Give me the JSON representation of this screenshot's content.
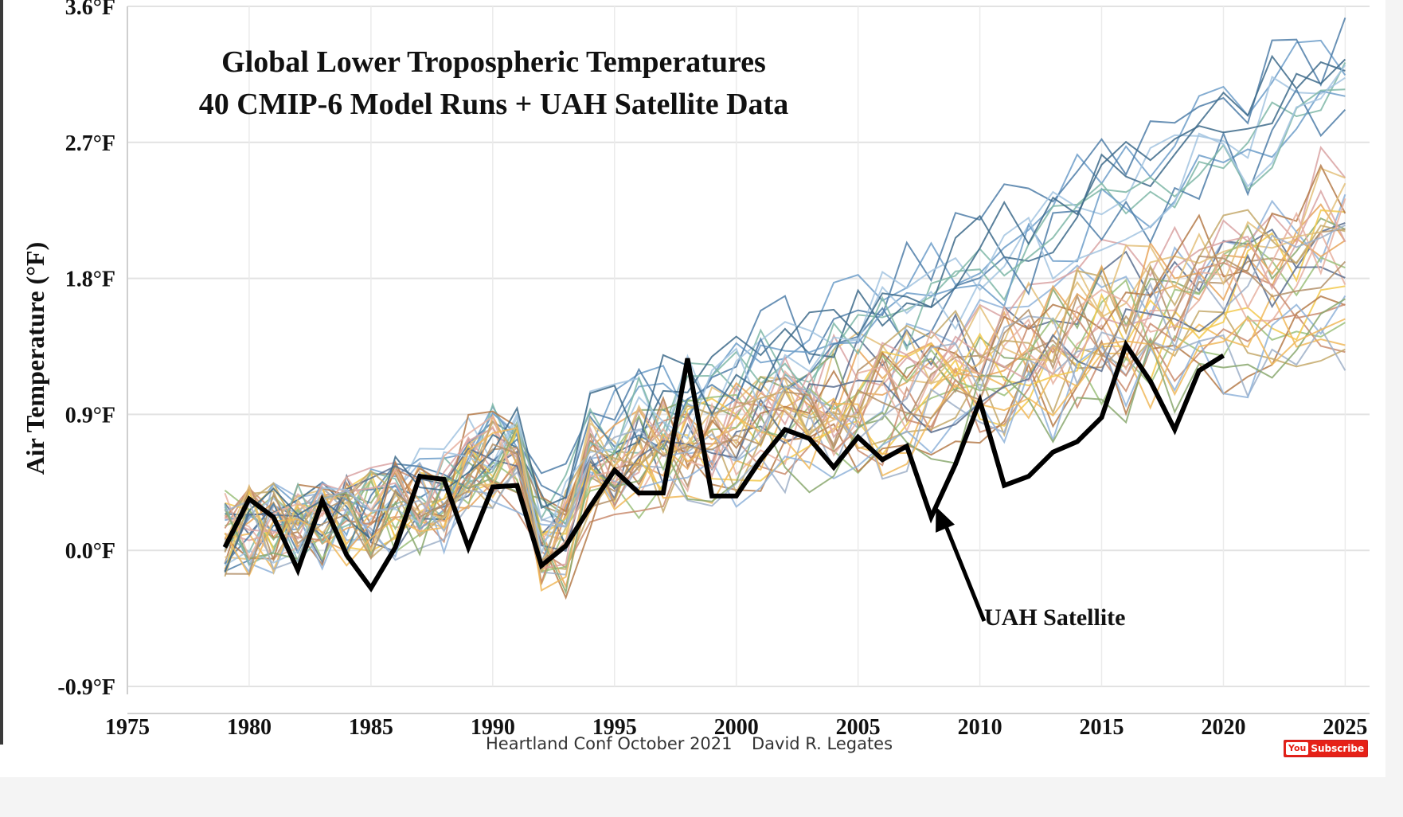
{
  "chart_data": {
    "type": "line",
    "title": [
      "Global Lower Tropospheric Temperatures",
      "40 CMIP-6 Model Runs + UAH Satellite Data"
    ],
    "ylabel": "Air Temperature (°F)",
    "xlabel": "",
    "xlim": [
      1975,
      2026
    ],
    "ylim": [
      -0.9,
      3.6
    ],
    "x_ticks": [
      1975,
      1980,
      1985,
      1990,
      1995,
      2000,
      2005,
      2010,
      2015,
      2020,
      2025
    ],
    "x_tick_labels": [
      "1975",
      "1980",
      "1985",
      "1990",
      "1995",
      "2000",
      "2005",
      "2010",
      "2015",
      "2020",
      "2025"
    ],
    "y_ticks": [
      -0.9,
      0.0,
      0.9,
      1.8,
      2.7,
      3.6
    ],
    "y_tick_labels": [
      "-0.9°F",
      "0.0°F",
      "0.9°F",
      "1.8°F",
      "2.7°F",
      "3.6°F"
    ],
    "grid": true,
    "model_runs": {
      "name": "CMIP-6 model runs",
      "count": 40,
      "colors": [
        "#6d9ec9",
        "#e8a55a",
        "#9bbf7a",
        "#c98b6d",
        "#4f7ea8",
        "#f2c94c",
        "#8fb3d9",
        "#b57b4a",
        "#7fb7a7",
        "#d9a3a3",
        "#5a6f8f",
        "#e3c07a",
        "#a3c4e0",
        "#c4a96b",
        "#8aa86e",
        "#e6b0a0",
        "#3d6a8a",
        "#f0b85a",
        "#9fb0c8",
        "#b3906a"
      ],
      "x_start": 1979,
      "x_end": 2025
    },
    "series": [
      {
        "name": "UAH Satellite",
        "color": "#000000",
        "x": [
          1979,
          1980,
          1981,
          1982,
          1983,
          1984,
          1985,
          1986,
          1987,
          1988,
          1989,
          1990,
          1991,
          1992,
          1993,
          1994,
          1995,
          1996,
          1997,
          1998,
          1999,
          2000,
          2001,
          2002,
          2003,
          2004,
          2005,
          2006,
          2007,
          2008,
          2009,
          2010,
          2011,
          2012,
          2013,
          2014,
          2015,
          2016,
          2017,
          2018,
          2019,
          2020
        ],
        "values": [
          0.02,
          0.34,
          0.22,
          -0.13,
          0.33,
          -0.03,
          -0.25,
          0.02,
          0.49,
          0.47,
          0.02,
          0.42,
          0.43,
          -0.1,
          0.03,
          0.29,
          0.53,
          0.38,
          0.38,
          1.27,
          0.36,
          0.36,
          0.6,
          0.8,
          0.74,
          0.55,
          0.75,
          0.6,
          0.69,
          0.22,
          0.57,
          0.99,
          0.43,
          0.49,
          0.65,
          0.72,
          0.88,
          1.36,
          1.12,
          0.8,
          1.19,
          1.29
        ]
      }
    ],
    "annotations": [
      {
        "text": "UAH Satellite",
        "points_to_year": 2008,
        "points_to_value": 0.29
      }
    ]
  },
  "credits": {
    "event": "Heartland Conf  October 2021",
    "author": "David R. Legates"
  },
  "badge": {
    "logo": "You",
    "label": "Subscribe"
  }
}
